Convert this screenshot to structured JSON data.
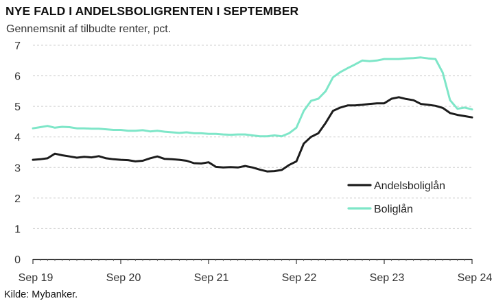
{
  "chart_data": {
    "type": "line",
    "title": "NYE FALD I ANDELSBOLIGRENTEN I SEPTEMBER",
    "subtitle": "Gennemsnit af tilbudte renter, pct.",
    "source": "Kilde: Mybanker.",
    "ylim": [
      0,
      7
    ],
    "yticks": [
      0,
      1,
      2,
      3,
      4,
      5,
      6,
      7
    ],
    "xlim": [
      "2019-09",
      "2024-09"
    ],
    "xticks": [
      {
        "x": "2019-09",
        "label": "Sep 19"
      },
      {
        "x": "2020-09",
        "label": "Sep 20"
      },
      {
        "x": "2021-09",
        "label": "Sep 21"
      },
      {
        "x": "2022-09",
        "label": "Sep 22"
      },
      {
        "x": "2023-09",
        "label": "Sep 23"
      },
      {
        "x": "2024-09",
        "label": "Sep 24"
      }
    ],
    "grid": true,
    "legend_position": "lower-right",
    "x": [
      "2019-09",
      "2019-10",
      "2019-11",
      "2019-12",
      "2020-01",
      "2020-02",
      "2020-03",
      "2020-04",
      "2020-05",
      "2020-06",
      "2020-07",
      "2020-08",
      "2020-09",
      "2020-10",
      "2020-11",
      "2020-12",
      "2021-01",
      "2021-02",
      "2021-03",
      "2021-04",
      "2021-05",
      "2021-06",
      "2021-07",
      "2021-08",
      "2021-09",
      "2021-10",
      "2021-11",
      "2021-12",
      "2022-01",
      "2022-02",
      "2022-03",
      "2022-04",
      "2022-05",
      "2022-06",
      "2022-07",
      "2022-08",
      "2022-09",
      "2022-10",
      "2022-11",
      "2022-12",
      "2023-01",
      "2023-02",
      "2023-03",
      "2023-04",
      "2023-05",
      "2023-06",
      "2023-07",
      "2023-08",
      "2023-09",
      "2023-10",
      "2023-11",
      "2023-12",
      "2024-01",
      "2024-02",
      "2024-03",
      "2024-04",
      "2024-05",
      "2024-06",
      "2024-07",
      "2024-08",
      "2024-09"
    ],
    "series": [
      {
        "name": "Andelsboliglån",
        "color": "#1c1c1c",
        "values": [
          3.25,
          3.27,
          3.3,
          3.45,
          3.4,
          3.36,
          3.32,
          3.35,
          3.33,
          3.37,
          3.3,
          3.27,
          3.25,
          3.24,
          3.2,
          3.22,
          3.3,
          3.36,
          3.28,
          3.27,
          3.25,
          3.22,
          3.14,
          3.13,
          3.17,
          3.02,
          3.0,
          3.01,
          3.0,
          3.05,
          3.0,
          2.93,
          2.87,
          2.88,
          2.92,
          3.08,
          3.2,
          3.78,
          4.0,
          4.12,
          4.46,
          4.85,
          4.96,
          5.03,
          5.03,
          5.05,
          5.08,
          5.1,
          5.1,
          5.25,
          5.3,
          5.24,
          5.2,
          5.08,
          5.05,
          5.02,
          4.95,
          4.78,
          4.72,
          4.68,
          4.64
        ]
      },
      {
        "name": "Boliglån",
        "color": "#7ee6c8",
        "values": [
          4.28,
          4.32,
          4.36,
          4.3,
          4.33,
          4.32,
          4.28,
          4.28,
          4.27,
          4.27,
          4.25,
          4.23,
          4.23,
          4.2,
          4.2,
          4.22,
          4.18,
          4.2,
          4.17,
          4.15,
          4.13,
          4.15,
          4.12,
          4.12,
          4.1,
          4.1,
          4.08,
          4.07,
          4.08,
          4.08,
          4.05,
          4.02,
          4.02,
          4.05,
          4.02,
          4.12,
          4.3,
          4.85,
          5.18,
          5.25,
          5.5,
          5.95,
          6.12,
          6.25,
          6.37,
          6.5,
          6.48,
          6.5,
          6.55,
          6.55,
          6.55,
          6.57,
          6.58,
          6.6,
          6.57,
          6.55,
          6.1,
          5.2,
          4.92,
          4.96,
          4.9
        ]
      }
    ]
  }
}
